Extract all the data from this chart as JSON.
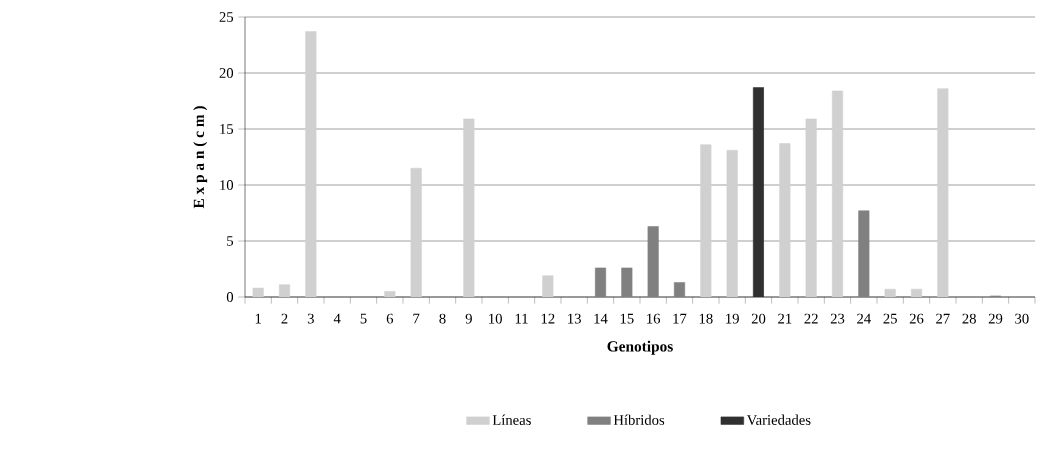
{
  "chart_data": {
    "type": "bar",
    "xlabel": "Genotipos",
    "ylabel": "E x p a n ( c m )",
    "categories": [
      "1",
      "2",
      "3",
      "4",
      "5",
      "6",
      "7",
      "8",
      "9",
      "10",
      "11",
      "12",
      "13",
      "14",
      "15",
      "16",
      "17",
      "18",
      "19",
      "20",
      "21",
      "22",
      "23",
      "24",
      "25",
      "26",
      "27",
      "28",
      "29",
      "30"
    ],
    "series": [
      {
        "name": "Líneas",
        "color": "#d0d0d0",
        "values": [
          0.8,
          1.1,
          23.7,
          null,
          null,
          0.5,
          11.5,
          null,
          15.9,
          null,
          null,
          1.9,
          null,
          null,
          null,
          null,
          null,
          13.6,
          13.1,
          null,
          13.7,
          15.9,
          18.4,
          null,
          0.7,
          0.7,
          18.6,
          null,
          null,
          null
        ]
      },
      {
        "name": "Híbridos",
        "color": "#808080",
        "values": [
          null,
          null,
          null,
          null,
          null,
          null,
          null,
          null,
          null,
          null,
          null,
          null,
          null,
          2.6,
          2.6,
          6.3,
          1.3,
          null,
          null,
          null,
          null,
          null,
          null,
          7.7,
          null,
          null,
          null,
          null,
          0.1,
          null
        ]
      },
      {
        "name": "Variedades",
        "color": "#303030",
        "values": [
          null,
          null,
          null,
          null,
          null,
          null,
          null,
          null,
          null,
          null,
          null,
          null,
          null,
          null,
          null,
          null,
          null,
          null,
          null,
          18.7,
          null,
          null,
          null,
          null,
          null,
          null,
          null,
          null,
          null,
          null
        ]
      }
    ],
    "ylim": [
      0,
      25
    ],
    "yticks": [
      0,
      5,
      10,
      15,
      20,
      25
    ],
    "grid": "y",
    "legend": "bottom"
  }
}
